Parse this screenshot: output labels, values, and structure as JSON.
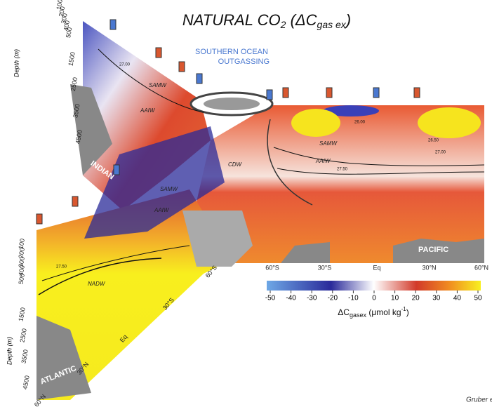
{
  "title": {
    "text": "NATURAL CO",
    "sub": "2",
    "open": " (ΔC",
    "sub2": "gas ex",
    "close": ")"
  },
  "annotation": [
    "SOUTHERN OCEAN",
    "OUTGASSING"
  ],
  "basins": [
    "INDIAN",
    "ATLANTIC",
    "PACIFIC"
  ],
  "water_masses": [
    "SAMW",
    "AAIW",
    "SAMW",
    "AAIW",
    "CDW",
    "SAMW",
    "AAIW",
    "NADW"
  ],
  "contours": [
    "27.50",
    "27.00",
    "26.50",
    "26.00",
    "27.50",
    "27.00"
  ],
  "pacific_lat": [
    "60°S",
    "30°S",
    "Eq",
    "30°N",
    "60°N"
  ],
  "atlantic_lat": [
    "60°S",
    "30°S",
    "Eq",
    "30°N",
    "60°N"
  ],
  "depth_label": "Depth (m)",
  "depths": [
    100,
    200,
    300,
    400,
    500,
    1500,
    2500,
    3500,
    4500
  ],
  "colorbar": {
    "ticks": [
      -50,
      -40,
      -30,
      -20,
      -10,
      0,
      10,
      20,
      30,
      40,
      50
    ],
    "label": {
      "text": "ΔC",
      "sub": "gasex",
      "unit": " (μmol kg",
      "sup": "-1",
      "close": ")"
    }
  },
  "credit": "Gruber e"
}
